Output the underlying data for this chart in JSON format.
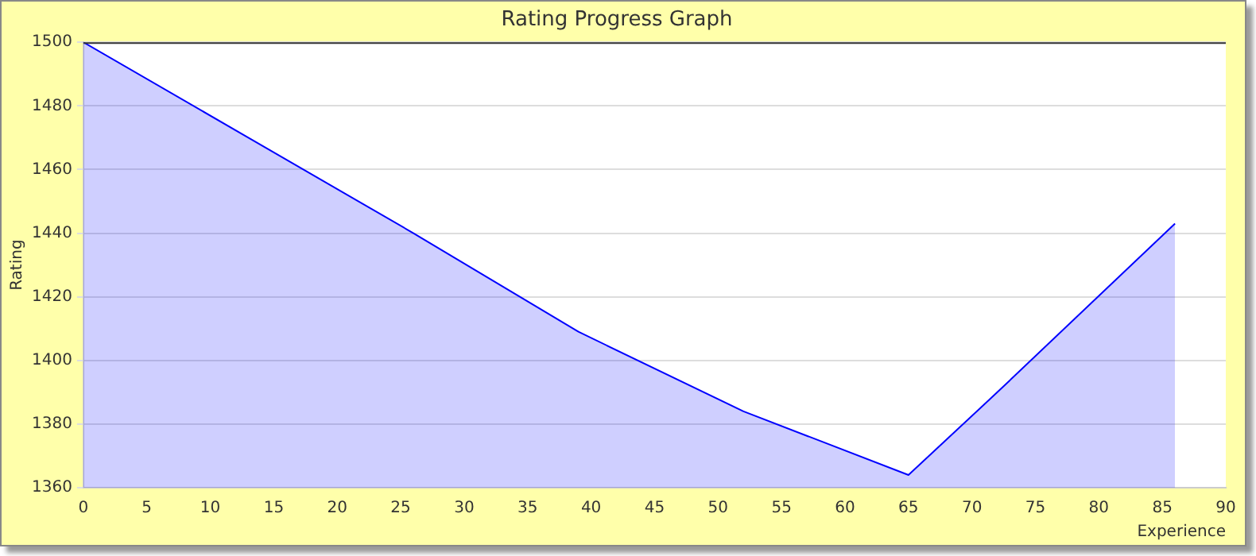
{
  "chart_data": {
    "type": "area",
    "title": "Rating Progress Graph",
    "xlabel": "Experience",
    "ylabel": "Rating",
    "x": [
      0,
      13,
      26,
      39,
      52,
      65,
      72,
      86
    ],
    "series": [
      {
        "color": "#0000ff",
        "values": [
          1500,
          1470,
          1440,
          1409,
          1384,
          1364,
          1390,
          1443
        ]
      }
    ],
    "xlim": [
      0,
      90
    ],
    "xticks": [
      0,
      5,
      10,
      15,
      20,
      25,
      30,
      35,
      40,
      45,
      50,
      55,
      60,
      65,
      70,
      75,
      80,
      85,
      90
    ],
    "ylim": [
      1360,
      1500
    ],
    "yticks": [
      1360,
      1380,
      1400,
      1420,
      1440,
      1460,
      1480,
      1500
    ],
    "grid": "y",
    "legend": false,
    "marker": "none",
    "line_style": "solid"
  }
}
